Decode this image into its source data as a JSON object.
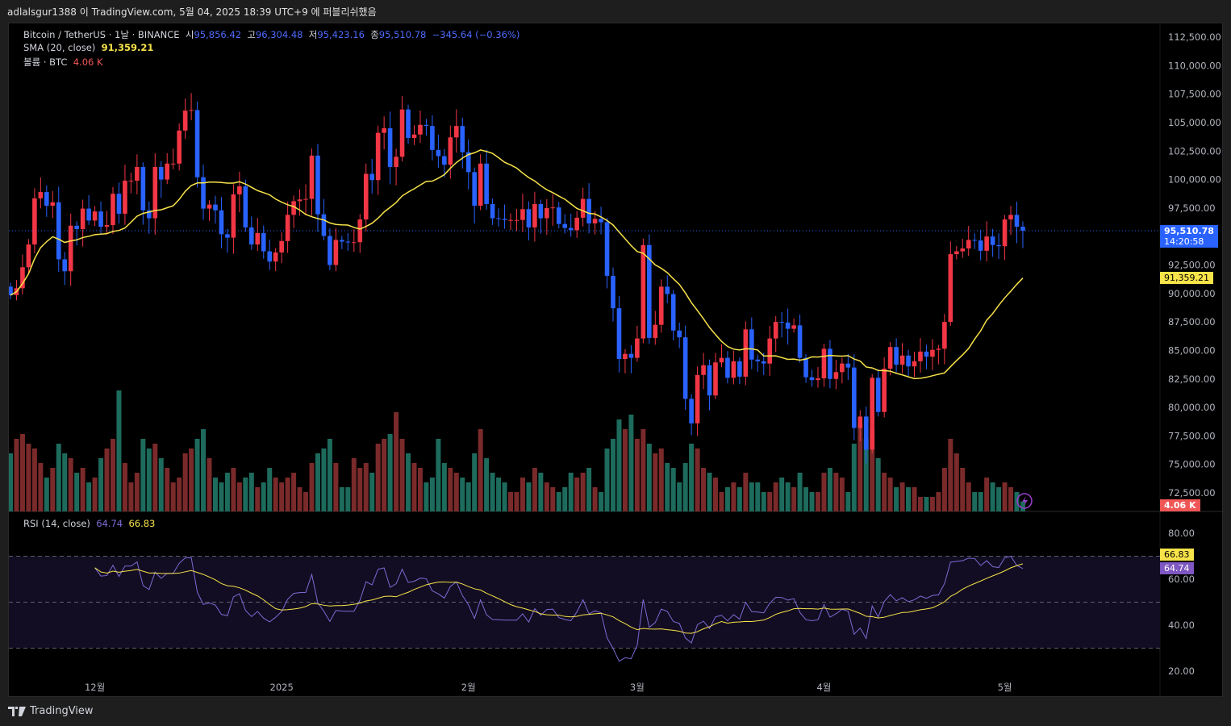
{
  "topbar": {
    "text": "adlalsgur1388 이 TradingView.com, 5월 04, 2025 18:39 UTC+9 에 퍼블리쉬했음"
  },
  "legend": {
    "symbol": "Bitcoin / TetherUS · 1날 · BINANCE",
    "open_label": "시",
    "open": "95,856.42",
    "high_label": "고",
    "high": "96,304.48",
    "low_label": "저",
    "low": "95,423.16",
    "close_label": "종",
    "close": "95,510.78",
    "change": "−345.64 (−0.36%)",
    "sma_label": "SMA (20, close)",
    "sma_value": "91,359.21",
    "volume_label": "볼륨 · BTC",
    "volume_value": "4.06 K",
    "rsi_label": "RSI (14, close)",
    "rsi_value": "64.74",
    "rsi_ma_value": "66.83"
  },
  "price_tag": {
    "price": "95,510.78",
    "countdown": "14:20:58"
  },
  "sma_tag": "91,359.21",
  "volume_tag": "4.06 K",
  "rsi_tags": {
    "ma": "66.83",
    "rsi": "64.74"
  },
  "footer": {
    "brand": "TradingView"
  },
  "colors": {
    "up": "#f23645",
    "down": "#2962ff",
    "sma": "#f7e34a",
    "vol_up": "#7a2a2a",
    "vol_down": "#1d6b5c",
    "rsi": "#7e6bd6",
    "rsi_ma": "#f7e34a"
  },
  "chart_data": {
    "type": "candlestick",
    "title": "Bitcoin / TetherUS · 1날 · BINANCE",
    "start_date": "2024-11-17",
    "end_date": "2025-05-04",
    "first_open": 90600,
    "close": [
      89850,
      90460,
      92300,
      94300,
      98350,
      98900,
      97700,
      98000,
      93000,
      91950,
      95950,
      95650,
      97450,
      96400,
      97200,
      95850,
      96000,
      98750,
      97000,
      99900,
      99900,
      101100,
      97300,
      96600,
      101100,
      100000,
      101400,
      101400,
      104300,
      106050,
      106100,
      100200,
      97450,
      97800,
      97300,
      95200,
      94900,
      98700,
      99400,
      95800,
      94300,
      95300,
      93700,
      92800,
      93600,
      94600,
      96900,
      98100,
      98250,
      98300,
      102100,
      96950,
      95050,
      92500,
      94700,
      94550,
      94500,
      94500,
      96500,
      100500,
      99950,
      104100,
      104500,
      101100,
      102000,
      106150,
      103650,
      103950,
      104800,
      104700,
      102600,
      102050,
      101300,
      103700,
      104700,
      102400,
      100650,
      97700,
      101400,
      97850,
      96600,
      96550,
      96450,
      96450,
      96450,
      97400,
      95800,
      97850,
      96600,
      97500,
      97550,
      96100,
      95750,
      95550,
      96650,
      98300,
      96150,
      96550,
      96250,
      91550,
      88700,
      84250,
      84700,
      84350,
      86050,
      94250,
      86100,
      87250,
      90600,
      89950,
      86750,
      86150,
      80750,
      78600,
      82850,
      83700,
      81050,
      83950,
      84350,
      82600,
      84050,
      82700,
      86850,
      84200,
      84050,
      83850,
      86050,
      87500,
      87450,
      86900,
      87200,
      84350,
      82650,
      82400,
      82550,
      85150,
      82500,
      83100,
      83850,
      83500,
      78200,
      79200,
      76300,
      82600,
      79600,
      83400,
      85300,
      83750,
      84550,
      83600,
      84050,
      84900,
      84450,
      85050,
      85150,
      87500,
      93450,
      93700,
      93950,
      94700,
      94650,
      93750,
      95000,
      94250,
      94150,
      96500,
      96900,
      95856.42,
      95510.78
    ],
    "volume_k": [
      24,
      30,
      32,
      28,
      26,
      20,
      14,
      18,
      28,
      24,
      22,
      16,
      18,
      12,
      14,
      22,
      26,
      30,
      50,
      20,
      12,
      16,
      30,
      26,
      28,
      22,
      18,
      12,
      14,
      24,
      26,
      30,
      34,
      22,
      14,
      12,
      16,
      18,
      12,
      14,
      16,
      10,
      12,
      18,
      14,
      12,
      14,
      16,
      10,
      8,
      20,
      24,
      26,
      30,
      20,
      10,
      10,
      22,
      18,
      20,
      16,
      28,
      30,
      32,
      41,
      30,
      24,
      20,
      18,
      12,
      14,
      30,
      20,
      18,
      16,
      14,
      12,
      24,
      34,
      22,
      16,
      14,
      12,
      8,
      8,
      14,
      12,
      18,
      16,
      12,
      10,
      8,
      10,
      16,
      14,
      16,
      18,
      10,
      8,
      26,
      30,
      38,
      34,
      40,
      30,
      34,
      28,
      24,
      26,
      20,
      18,
      12,
      20,
      28,
      26,
      18,
      16,
      14,
      8,
      10,
      12,
      10,
      16,
      12,
      12,
      8,
      8,
      12,
      14,
      12,
      10,
      16,
      10,
      8,
      8,
      16,
      18,
      16,
      14,
      8,
      28,
      36,
      30,
      34,
      22,
      16,
      14,
      10,
      12,
      10,
      10,
      6,
      6,
      6,
      8,
      18,
      30,
      24,
      18,
      12,
      8,
      8,
      14,
      12,
      10,
      12,
      10,
      8,
      4.06
    ],
    "sma_period": 20,
    "rsi_period": 14,
    "price_ticks": [
      "112,500.00",
      "110,000.00",
      "107,500.00",
      "105,000.00",
      "102,500.00",
      "100,000.00",
      "97,500.00",
      "92,500.00",
      "90,000.00",
      "87,500.00",
      "85,000.00",
      "82,500.00",
      "80,000.00",
      "77,500.00",
      "75,000.00",
      "72,500.00"
    ],
    "price_tick_values": [
      112500,
      110000,
      107500,
      105000,
      102500,
      100000,
      97500,
      92500,
      90000,
      87500,
      85000,
      82500,
      80000,
      77500,
      75000,
      72500
    ],
    "rsi_ticks": [
      "80.00",
      "60.00",
      "40.00",
      "20.00"
    ],
    "rsi_tick_values": [
      80,
      60,
      40,
      20
    ],
    "rsi_bands": [
      70,
      50,
      30
    ],
    "x_ticks": [
      {
        "label": "12월",
        "index": 14
      },
      {
        "label": "2025",
        "index": 45
      },
      {
        "label": "2월",
        "index": 76
      },
      {
        "label": "3월",
        "index": 104
      },
      {
        "label": "4월",
        "index": 135
      },
      {
        "label": "5월",
        "index": 165
      }
    ]
  }
}
